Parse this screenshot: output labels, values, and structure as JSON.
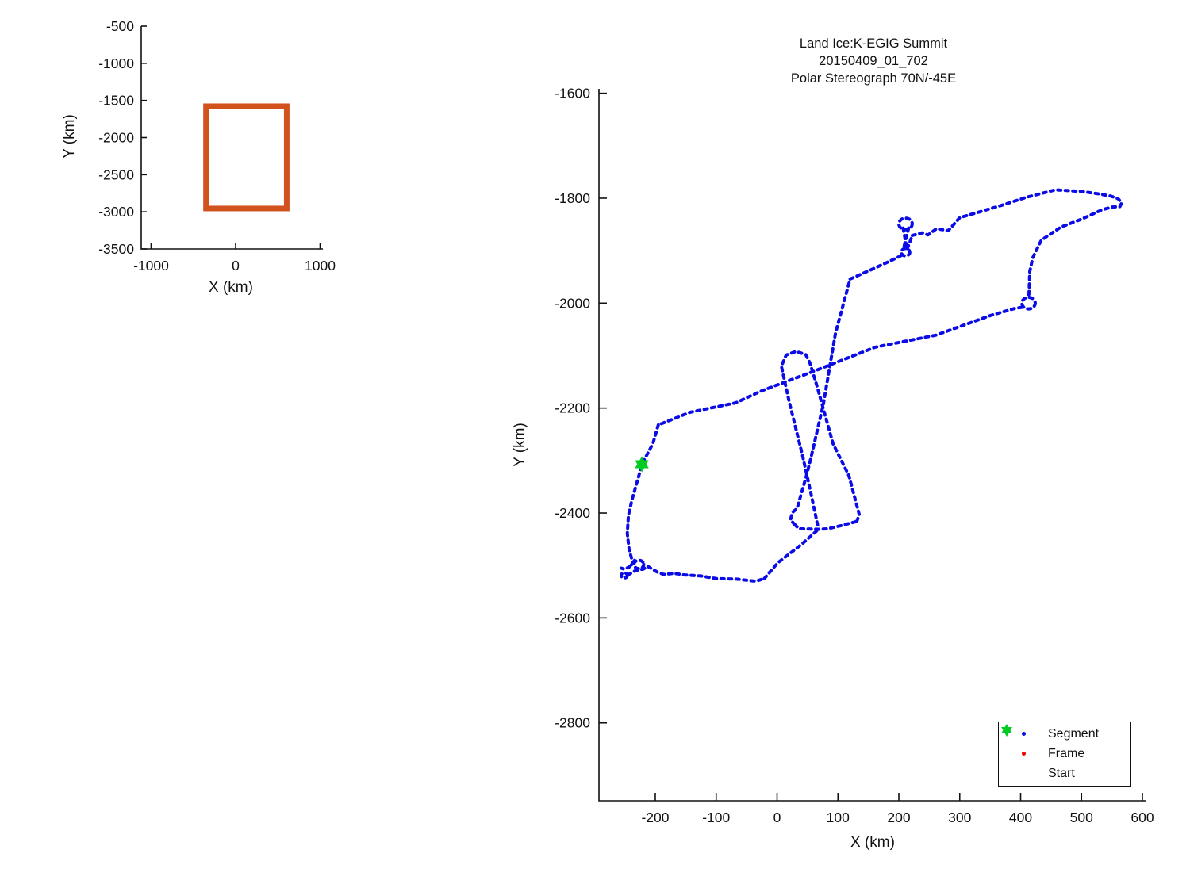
{
  "chart_data": [
    {
      "id": "overview",
      "type": "line",
      "xlabel": "X (km)",
      "ylabel": "Y (km)",
      "xlim": [
        -1117,
        1033
      ],
      "ylim": [
        -3500,
        -500
      ],
      "xticks": [
        -1000,
        0,
        1000
      ],
      "yticks": [
        -500,
        -1000,
        -1500,
        -2000,
        -2500,
        -3000,
        -3500
      ],
      "series": [
        {
          "name": "coverage-rectangle",
          "shape": "rect",
          "x": [
            -350,
            605
          ],
          "y": [
            -2955,
            -1578
          ],
          "color": "#d2521e",
          "line_width": 7
        }
      ]
    },
    {
      "id": "flight-track",
      "type": "scatter",
      "title_lines": [
        "Land Ice:K-EGIG Summit",
        "20150409_01_702",
        "Polar Stereograph 70N/-45E"
      ],
      "xlabel": "X (km)",
      "ylabel": "Y (km)",
      "xlim": [
        -292.5,
        606.5
      ],
      "ylim": [
        -2948.5,
        -1591.5
      ],
      "xticks": [
        -200,
        -100,
        0,
        100,
        200,
        300,
        400,
        500,
        600
      ],
      "yticks": [
        -1600,
        -1800,
        -2000,
        -2200,
        -2400,
        -2600,
        -2800
      ],
      "path_color": "#0b0be8",
      "frame_color": "#f00000",
      "start_color": "#00cc22",
      "start_point": [
        -222,
        -2307
      ],
      "segments": [
        [
          [
            120,
            -1954
          ],
          [
            155,
            -1936
          ],
          [
            185,
            -1920
          ],
          [
            208,
            -1907
          ]
        ],
        [
          [
            207,
            -1857
          ],
          [
            213,
            -1895
          ]
        ],
        [
          [
            216,
            -1857
          ],
          [
            208,
            -1895
          ]
        ],
        [
          [
            214,
            -1896
          ],
          [
            218,
            -1884
          ],
          [
            222,
            -1871
          ]
        ],
        [
          [
            222,
            -1871
          ],
          [
            238,
            -1866
          ],
          [
            248,
            -1870
          ],
          [
            262,
            -1858
          ],
          [
            281,
            -1862
          ],
          [
            300,
            -1837
          ],
          [
            330,
            -1827
          ],
          [
            365,
            -1815
          ],
          [
            410,
            -1798
          ],
          [
            457,
            -1784
          ],
          [
            500,
            -1787
          ],
          [
            530,
            -1792
          ],
          [
            548,
            -1796
          ],
          [
            560,
            -1801
          ],
          [
            566,
            -1809
          ],
          [
            563,
            -1816
          ],
          [
            550,
            -1817
          ],
          [
            534,
            -1822
          ],
          [
            500,
            -1840
          ],
          [
            466,
            -1855
          ],
          [
            434,
            -1880
          ],
          [
            420,
            -1913
          ],
          [
            415,
            -1940
          ],
          [
            414,
            -1975
          ],
          [
            413,
            -1989
          ]
        ],
        [
          [
            402,
            -2008
          ],
          [
            391,
            -2010
          ],
          [
            352,
            -2023
          ],
          [
            261,
            -2061
          ],
          [
            161,
            -2084
          ],
          [
            62,
            -2129
          ],
          [
            -25,
            -2167
          ],
          [
            -68,
            -2190
          ],
          [
            -143,
            -2208
          ],
          [
            -195,
            -2232
          ]
        ],
        [
          [
            -195,
            -2232
          ],
          [
            -204,
            -2268
          ],
          [
            -222,
            -2307
          ],
          [
            -227,
            -2329
          ],
          [
            -238,
            -2374
          ],
          [
            -244,
            -2404
          ],
          [
            -246,
            -2439
          ],
          [
            -243,
            -2469
          ],
          [
            -237,
            -2495
          ],
          [
            -240,
            -2500
          ]
        ],
        [
          [
            -234,
            -2490
          ],
          [
            -243,
            -2503
          ],
          [
            -251,
            -2507
          ],
          [
            -256,
            -2505
          ]
        ],
        [
          [
            -245,
            -2518
          ],
          [
            -233,
            -2510
          ],
          [
            -220,
            -2507
          ],
          [
            -212,
            -2502
          ]
        ],
        [
          [
            -212,
            -2502
          ],
          [
            -196,
            -2513
          ],
          [
            -186,
            -2517
          ],
          [
            -169,
            -2515
          ],
          [
            -152,
            -2518
          ],
          [
            -125,
            -2520
          ],
          [
            -100,
            -2525
          ],
          [
            -66,
            -2526
          ],
          [
            -35,
            -2530
          ],
          [
            -21,
            -2525
          ]
        ],
        [
          [
            -21,
            -2525
          ],
          [
            1,
            -2495
          ],
          [
            40,
            -2460
          ],
          [
            68,
            -2431
          ]
        ],
        [
          [
            29,
            -2422
          ],
          [
            36,
            -2430
          ],
          [
            68,
            -2431
          ],
          [
            83,
            -2430
          ],
          [
            105,
            -2424
          ],
          [
            131,
            -2416
          ]
        ],
        [
          [
            131,
            -2416
          ],
          [
            135,
            -2403
          ],
          [
            118,
            -2329
          ],
          [
            92,
            -2268
          ],
          [
            66,
            -2160
          ],
          [
            54,
            -2114
          ],
          [
            47,
            -2098
          ],
          [
            31,
            -2092
          ],
          [
            15,
            -2099
          ],
          [
            7,
            -2120
          ],
          [
            20,
            -2188
          ],
          [
            42,
            -2291
          ],
          [
            55,
            -2359
          ],
          [
            68,
            -2431
          ]
        ],
        [
          [
            29,
            -2422
          ],
          [
            22,
            -2413
          ],
          [
            25,
            -2399
          ],
          [
            33,
            -2391
          ],
          [
            48,
            -2330
          ],
          [
            55,
            -2298
          ],
          [
            76,
            -2193
          ],
          [
            96,
            -2057
          ],
          [
            120,
            -1954
          ]
        ]
      ],
      "loops": [
        {
          "cx": 413,
          "cy": -2000,
          "r": 11
        },
        {
          "cx": 211,
          "cy": -1849,
          "r": 11
        },
        {
          "cx": 211,
          "cy": -1903,
          "r": 7
        },
        {
          "cx": -227,
          "cy": -2498,
          "r": 8
        },
        {
          "cx": -251,
          "cy": -2519,
          "r": 5
        }
      ],
      "legend": {
        "position": "lower right",
        "items": [
          {
            "label": "Segment",
            "marker": "dot",
            "color": "#0b0be8"
          },
          {
            "label": "Frame",
            "marker": "dot",
            "color": "#f00000"
          },
          {
            "label": "Start",
            "marker": "hexagram",
            "color": "#00cc22"
          }
        ]
      }
    }
  ]
}
